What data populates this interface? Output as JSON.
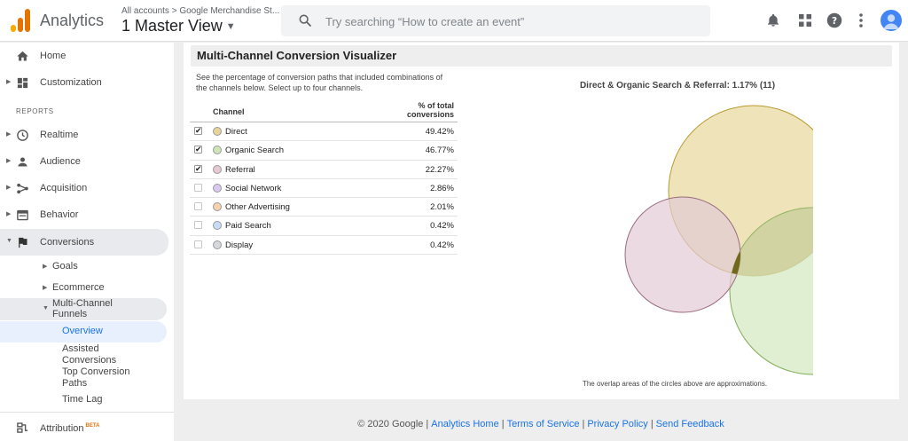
{
  "header": {
    "brand": "Analytics",
    "account_crumb": "All accounts > Google Merchandise St...",
    "view_name": "1 Master View",
    "search_placeholder": "Try searching “How to create an event”",
    "logo_colors": [
      "#f9ab00",
      "#e37400",
      "#e37400"
    ],
    "icons": [
      "bell-icon",
      "apps-grid-icon",
      "help-icon",
      "more-vert-icon",
      "avatar-icon"
    ]
  },
  "sidebar": {
    "top_items": [
      {
        "label": "Home",
        "icon": "home-icon"
      },
      {
        "label": "Customization",
        "icon": "dashboard-icon"
      }
    ],
    "reports_label": "REPORTS",
    "report_items": [
      {
        "label": "Realtime",
        "icon": "clock-icon"
      },
      {
        "label": "Audience",
        "icon": "person-icon"
      },
      {
        "label": "Acquisition",
        "icon": "acquisition-icon"
      },
      {
        "label": "Behavior",
        "icon": "behavior-icon"
      },
      {
        "label": "Conversions",
        "icon": "flag-icon"
      }
    ],
    "conversion_sub": [
      "Goals",
      "Ecommerce"
    ],
    "mcf_label": "Multi-Channel Funnels",
    "mcf_items": [
      "Overview",
      "Assisted Conversions",
      "Top Conversion Paths",
      "Time Lag"
    ],
    "attribution": {
      "label": "Attribution",
      "badge": "BETA"
    }
  },
  "main": {
    "title": "Multi-Channel Conversion Visualizer",
    "intro": "See the percentage of conversion paths that included combinations of the channels below. Select up to four channels.",
    "table": {
      "col_channel": "Channel",
      "col_pct": "% of total conversions",
      "rows": [
        {
          "channel": "Direct",
          "pct": "49.42%",
          "checked": true,
          "color": "#e6d49a"
        },
        {
          "channel": "Organic Search",
          "pct": "46.77%",
          "checked": true,
          "color": "#cfe5b8"
        },
        {
          "channel": "Referral",
          "pct": "22.27%",
          "checked": true,
          "color": "#e7c9d5"
        },
        {
          "channel": "Social Network",
          "pct": "2.86%",
          "checked": false,
          "color": "#d9c8ef"
        },
        {
          "channel": "Other Advertising",
          "pct": "2.01%",
          "checked": false,
          "color": "#f6d2ae"
        },
        {
          "channel": "Paid Search",
          "pct": "0.42%",
          "checked": false,
          "color": "#c6dcf7"
        },
        {
          "channel": "Display",
          "pct": "0.42%",
          "checked": false,
          "color": "#d6d8de"
        }
      ]
    },
    "venn_title": "Direct & Organic Search & Referral: 1.17% (11)",
    "venn_note": "The overlap areas of the circles above are approximations.",
    "venn_colors": {
      "direct": "#e8d9a2",
      "organic": "#d6e8c1",
      "referral": "#e3cbd4",
      "intersection": "#6b6215"
    }
  },
  "footer": {
    "copyright": "© 2020 Google",
    "links": [
      "Analytics Home",
      "Terms of Service",
      "Privacy Policy",
      "Send Feedback"
    ]
  }
}
